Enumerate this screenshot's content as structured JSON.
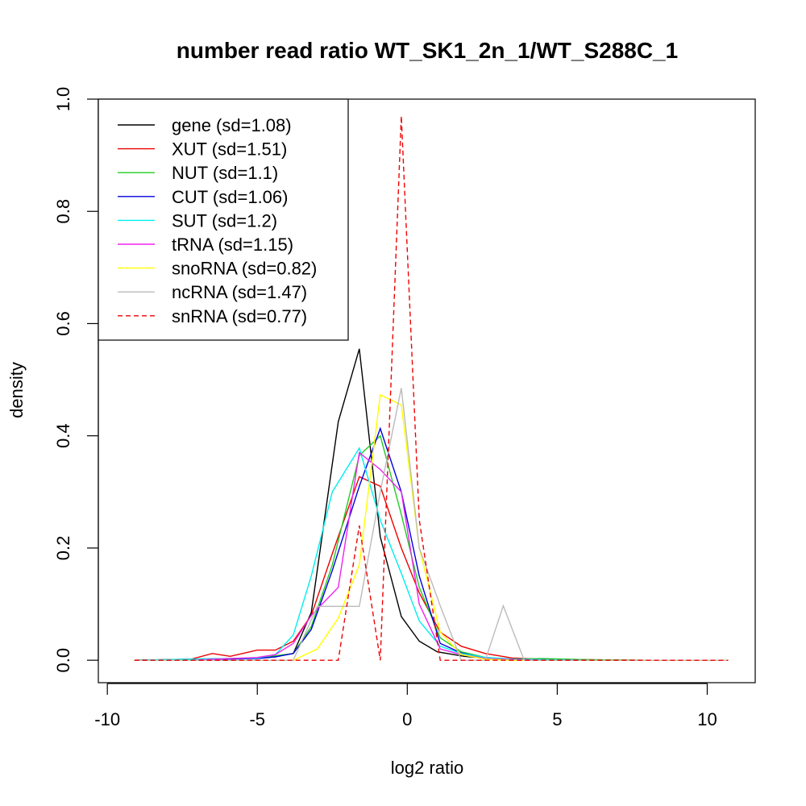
{
  "chart_data": {
    "type": "line",
    "title": "number read ratio WT_SK1_2n_1/WT_S288C_1",
    "xlabel": "log2 ratio",
    "ylabel": "density",
    "xlim": [
      -10.3,
      11.6
    ],
    "ylim": [
      -0.04,
      1.0
    ],
    "xticks": [
      -10,
      -5,
      0,
      5,
      10
    ],
    "yticks": [
      0.0,
      0.2,
      0.4,
      0.6,
      0.8,
      1.0
    ],
    "xtick_labels": [
      "-10",
      "-5",
      "0",
      "5",
      "10"
    ],
    "ytick_labels": [
      "0.0",
      "0.2",
      "0.4",
      "0.6",
      "0.8",
      "1.0"
    ],
    "grid": false,
    "legend_position": "top-left",
    "series": [
      {
        "name": "gene (sd=1.08)",
        "color": "#000000",
        "dash": "solid",
        "x": [
          -9.1,
          -7.2,
          -5.0,
          -4.4,
          -3.8,
          -3.2,
          -2.3,
          -1.6,
          -0.9,
          -0.2,
          0.4,
          1.0,
          1.9,
          2.7,
          3.5,
          4.5,
          6.0,
          8.0,
          10.7
        ],
        "y": [
          0.0,
          0.002,
          0.004,
          0.007,
          0.012,
          0.085,
          0.425,
          0.555,
          0.22,
          0.078,
          0.034,
          0.015,
          0.007,
          0.003,
          0.002,
          0.001,
          0.0,
          0.0,
          0.0
        ]
      },
      {
        "name": "XUT (sd=1.51)",
        "color": "#ee0000",
        "dash": "solid",
        "x": [
          -9.1,
          -7.2,
          -6.5,
          -5.9,
          -5.0,
          -4.4,
          -3.8,
          -3.2,
          -2.5,
          -1.6,
          -0.9,
          -0.2,
          0.4,
          1.1,
          1.8,
          2.6,
          3.5,
          4.5,
          6.0,
          8.0,
          10.7
        ],
        "y": [
          0.0,
          0.002,
          0.012,
          0.007,
          0.018,
          0.018,
          0.034,
          0.08,
          0.19,
          0.327,
          0.31,
          0.2,
          0.12,
          0.05,
          0.025,
          0.012,
          0.004,
          0.002,
          0.001,
          0.0,
          0.0
        ]
      },
      {
        "name": "NUT (sd=1.1)",
        "color": "#22cc22",
        "dash": "solid",
        "x": [
          -9.1,
          -7.2,
          -5.0,
          -4.4,
          -3.8,
          -3.2,
          -2.5,
          -1.6,
          -0.9,
          -0.2,
          0.4,
          1.1,
          1.8,
          2.6,
          3.5,
          4.5,
          6.0,
          8.0,
          10.7
        ],
        "y": [
          0.0,
          0.001,
          0.004,
          0.008,
          0.012,
          0.06,
          0.17,
          0.365,
          0.4,
          0.26,
          0.13,
          0.04,
          0.015,
          0.005,
          0.002,
          0.003,
          0.001,
          0.0,
          0.0
        ]
      },
      {
        "name": "CUT (sd=1.06)",
        "color": "#0000dd",
        "dash": "solid",
        "x": [
          -9.1,
          -7.2,
          -5.0,
          -4.4,
          -3.8,
          -3.2,
          -2.5,
          -1.6,
          -0.9,
          -0.2,
          0.4,
          1.1,
          1.8,
          2.6,
          3.5,
          4.5,
          6.0,
          8.0,
          10.7
        ],
        "y": [
          0.0,
          0.001,
          0.003,
          0.006,
          0.012,
          0.055,
          0.16,
          0.31,
          0.413,
          0.3,
          0.15,
          0.03,
          0.013,
          0.004,
          0.002,
          0.001,
          0.0,
          0.0,
          0.0
        ]
      },
      {
        "name": "SUT (sd=1.2)",
        "color": "#00eeee",
        "dash": "solid",
        "x": [
          -9.1,
          -7.2,
          -5.0,
          -4.4,
          -3.8,
          -3.2,
          -2.5,
          -1.6,
          -0.9,
          -0.2,
          0.4,
          1.1,
          1.8,
          2.6,
          3.5,
          4.5,
          6.0,
          8.0,
          10.7
        ],
        "y": [
          0.0,
          0.002,
          0.004,
          0.01,
          0.045,
          0.15,
          0.3,
          0.378,
          0.25,
          0.155,
          0.07,
          0.025,
          0.012,
          0.005,
          0.002,
          0.001,
          0.0,
          0.0,
          0.0
        ]
      },
      {
        "name": "tRNA (sd=1.15)",
        "color": "#ee22ee",
        "dash": "solid",
        "x": [
          -9.1,
          -7.2,
          -5.0,
          -4.4,
          -3.8,
          -3.2,
          -2.3,
          -1.6,
          -0.9,
          -0.2,
          0.4,
          1.1,
          1.8,
          2.6,
          3.5,
          4.5,
          6.0,
          8.0,
          10.7
        ],
        "y": [
          0.0,
          0.0,
          0.005,
          0.01,
          0.03,
          0.08,
          0.13,
          0.37,
          0.34,
          0.3,
          0.1,
          0.02,
          0.01,
          0.003,
          0.001,
          0.0,
          0.0,
          0.0,
          0.0
        ]
      },
      {
        "name": "snoRNA (sd=0.82)",
        "color": "#ffff00",
        "dash": "solid",
        "x": [
          -9.1,
          -5.0,
          -3.8,
          -3.0,
          -2.3,
          -1.6,
          -0.9,
          -0.2,
          0.4,
          1.1,
          1.8,
          2.6,
          3.5,
          4.5,
          6.0,
          8.0,
          10.7
        ],
        "y": [
          0.0,
          0.0,
          0.0,
          0.02,
          0.075,
          0.17,
          0.473,
          0.455,
          0.2,
          0.05,
          0.01,
          0.002,
          0.0,
          0.0,
          0.0,
          0.0,
          0.0
        ]
      },
      {
        "name": "ncRNA (sd=1.47)",
        "color": "#bbbbbb",
        "dash": "solid",
        "x": [
          -9.1,
          -5.0,
          -3.8,
          -3.0,
          -2.3,
          -1.6,
          -0.9,
          -0.2,
          0.4,
          1.1,
          1.8,
          2.6,
          3.2,
          3.9,
          4.5,
          6.0,
          8.0,
          10.7
        ],
        "y": [
          0.0,
          0.0,
          0.0,
          0.096,
          0.096,
          0.096,
          0.3,
          0.485,
          0.2,
          0.097,
          0.0,
          0.0,
          0.097,
          0.0,
          0.0,
          0.0,
          0.0,
          0.0
        ]
      },
      {
        "name": "snRNA (sd=0.77)",
        "color": "#ee0000",
        "dash": "dashed",
        "x": [
          -9.1,
          -5.0,
          -3.0,
          -2.3,
          -1.6,
          -0.9,
          -0.2,
          0.4,
          1.1,
          1.8,
          3.0,
          4.5,
          6.0,
          8.0,
          10.7
        ],
        "y": [
          0.0,
          0.0,
          0.0,
          0.0,
          0.24,
          0.0,
          0.97,
          0.25,
          0.0,
          0.0,
          0.0,
          0.0,
          0.0,
          0.0,
          0.0
        ]
      }
    ]
  }
}
